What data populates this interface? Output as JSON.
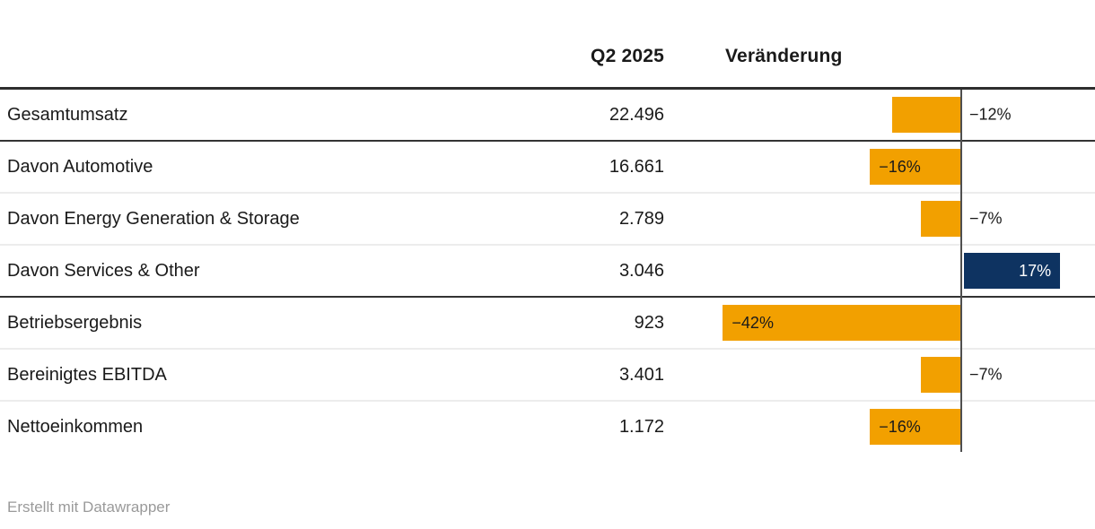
{
  "table": {
    "headers": {
      "value": "Q2 2025",
      "change": "Veränderung"
    },
    "rows": [
      {
        "label": "Gesamtumsatz",
        "value": "22.496",
        "change_pct": -12,
        "change_label": "−12%",
        "label_placement": "outside",
        "divider_after": "dark"
      },
      {
        "label": "Davon Automotive",
        "value": "16.661",
        "change_pct": -16,
        "change_label": "−16%",
        "label_placement": "inside",
        "divider_after": "light"
      },
      {
        "label": "Davon Energy Generation & Storage",
        "value": "2.789",
        "change_pct": -7,
        "change_label": "−7%",
        "label_placement": "outside",
        "divider_after": "light"
      },
      {
        "label": "Davon Services & Other",
        "value": "3.046",
        "change_pct": 17,
        "change_label": "17%",
        "label_placement": "inside",
        "divider_after": "dark"
      },
      {
        "label": "Betriebsergebnis",
        "value": "923",
        "change_pct": -42,
        "change_label": "−42%",
        "label_placement": "inside",
        "divider_after": "light"
      },
      {
        "label": "Bereinigtes EBITDA",
        "value": "3.401",
        "change_pct": -7,
        "change_label": "−7%",
        "label_placement": "outside",
        "divider_after": "light"
      },
      {
        "label": "Nettoeinkommen",
        "value": "1.172",
        "change_pct": -16,
        "change_label": "−16%",
        "label_placement": "inside",
        "divider_after": "none"
      }
    ]
  },
  "footer": {
    "attribution": "Erstellt mit Datawrapper"
  },
  "colors": {
    "negative_bar": "#F2A000",
    "positive_bar": "#0E3361",
    "text": "#1a1a1a",
    "bar_label_light": "#ffffff",
    "axis": "#4f4f4f",
    "divider_dark": "#333333",
    "divider_light": "#ececec",
    "attribution_text": "#9a9a9a"
  },
  "chart_data": {
    "type": "bar",
    "orientation": "horizontal",
    "title": "",
    "categories": [
      "Gesamtumsatz",
      "Davon Automotive",
      "Davon Energy Generation & Storage",
      "Davon Services & Other",
      "Betriebsergebnis",
      "Bereinigtes EBITDA",
      "Nettoeinkommen"
    ],
    "series": [
      {
        "name": "Q2 2025",
        "values": [
          22496,
          16661,
          2789,
          3046,
          923,
          3401,
          1172
        ]
      },
      {
        "name": "Veränderung (%)",
        "values": [
          -12,
          -16,
          -7,
          17,
          -42,
          -7,
          -16
        ]
      }
    ],
    "value_format": "german-thousands-dot",
    "bar_axis": {
      "zero_line": true,
      "negative_color": "#F2A000",
      "positive_color": "#0E3361"
    },
    "legend": "none",
    "grid": "off"
  }
}
